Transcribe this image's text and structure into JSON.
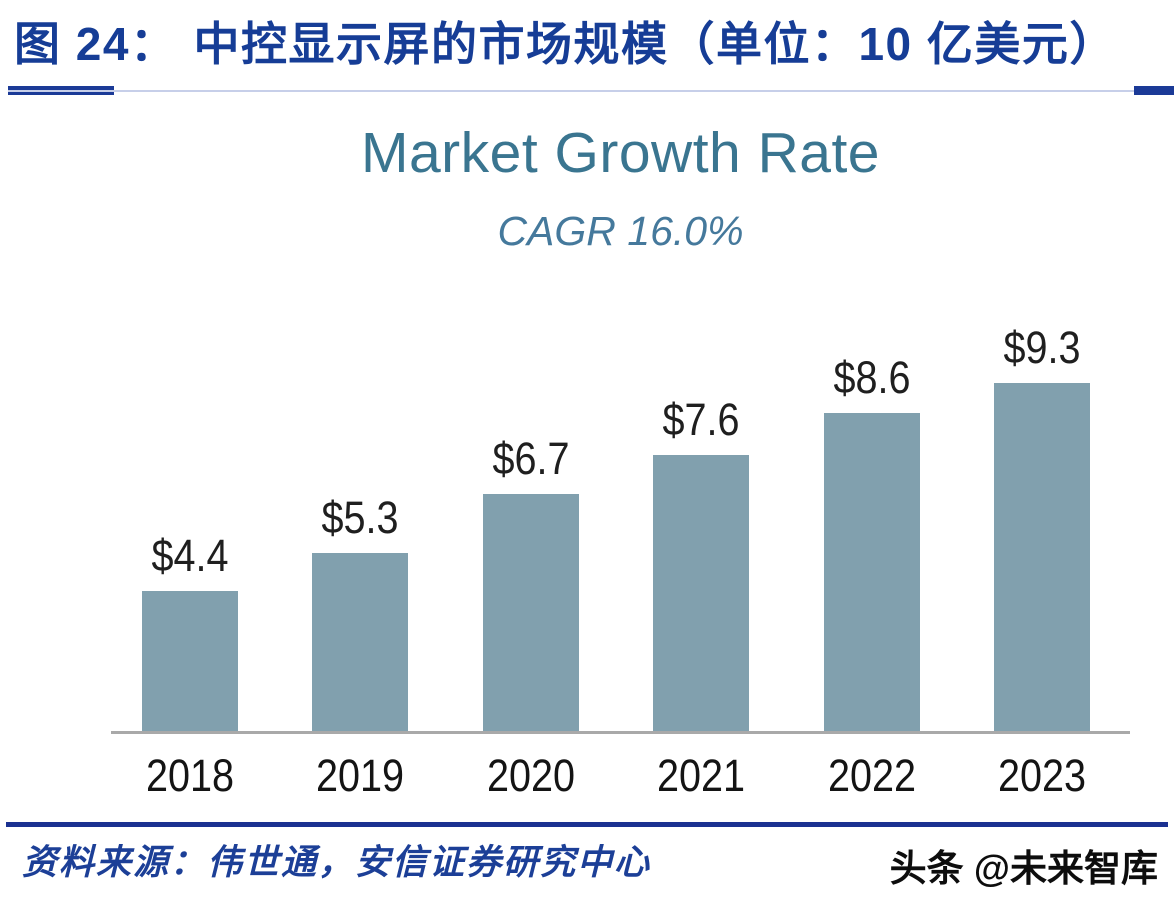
{
  "header": {
    "figure_label": "图 24：",
    "title": "中控显示屏的市场规模（单位：10 亿美元）"
  },
  "chart_data": {
    "type": "bar",
    "title": "Market Growth Rate",
    "subtitle": "CAGR 16.0%",
    "categories": [
      "2018",
      "2019",
      "2020",
      "2021",
      "2022",
      "2023"
    ],
    "values": [
      4.4,
      5.3,
      6.7,
      7.6,
      8.6,
      9.3
    ],
    "value_labels": [
      "$4.4",
      "$5.3",
      "$6.7",
      "$7.6",
      "$8.6",
      "$9.3"
    ],
    "unit_from_header": "10 亿美元 (billion USD)",
    "xlabel": "",
    "ylabel": "",
    "value_axis_visible": false,
    "gridlines": false,
    "legend": "none",
    "bar_color": "#81a0ae"
  },
  "footer": {
    "source": "资料来源：伟世通，安信证券研究中心",
    "watermark": "头条 @未来智库"
  },
  "colors": {
    "header_navy": "#163d96",
    "separator_light_blue": "#c7cfe9",
    "separator_navy": "#1b3a97",
    "chart_title_teal": "#3a7590",
    "subtitle_teal": "#45799c",
    "bar_fill": "#81a0ae",
    "baseline_gray": "#a9a9a9",
    "value_label_dark": "#1f1f1f",
    "footer_rule_navy": "#1b3191",
    "source_navy": "#1c3f97",
    "watermark_black": "#0d0d0d"
  }
}
